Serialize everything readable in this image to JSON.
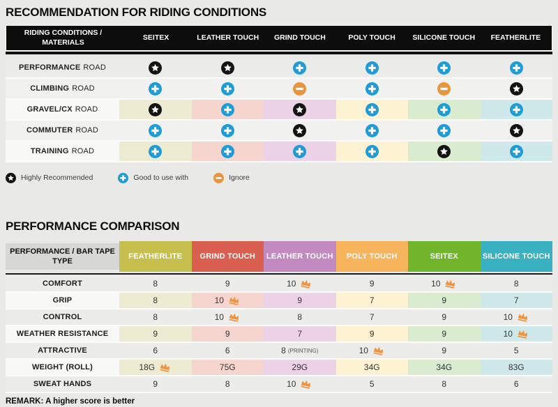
{
  "colors": {
    "icon_star_bg": "#141414",
    "icon_plus_bg": "#1d9cd8",
    "icon_minus_bg": "#e9953c",
    "crown": "#f0923e",
    "column_tints": [
      "#edecd3",
      "#f5d5cd",
      "#ecd2e6",
      "#fdf3d2",
      "#d9ecd0",
      "#cfe8e9"
    ]
  },
  "chart_data": [
    {
      "type": "table",
      "title": "RECOMMENDATION FOR RIDING CONDITIONS",
      "corner_label": "RIDING CONDITIONS / MATERIALS",
      "columns": [
        "SEITEX",
        "LEATHER TOUCH",
        "GRIND TOUCH",
        "POLY TOUCH",
        "SILICONE TOUCH",
        "FEATHERLITE"
      ],
      "rows": [
        {
          "label_bold": "PERFORMANCE",
          "label_rest": "ROAD",
          "tinted": false,
          "cells": [
            "star",
            "star",
            "plus",
            "plus",
            "plus",
            "plus"
          ]
        },
        {
          "label_bold": "CLIMBING",
          "label_rest": "ROAD",
          "tinted": false,
          "cells": [
            "plus",
            "plus",
            "minus",
            "plus",
            "minus",
            "star"
          ]
        },
        {
          "label_bold": "GRAVEL/CX",
          "label_rest": "ROAD",
          "tinted": true,
          "cells": [
            "star",
            "plus",
            "star",
            "plus",
            "plus",
            "plus"
          ]
        },
        {
          "label_bold": "COMMUTER",
          "label_rest": "ROAD",
          "tinted": false,
          "cells": [
            "plus",
            "plus",
            "star",
            "plus",
            "plus",
            "star"
          ]
        },
        {
          "label_bold": "TRAINING",
          "label_rest": "ROAD",
          "tinted": true,
          "cells": [
            "plus",
            "plus",
            "plus",
            "plus",
            "star",
            "plus"
          ]
        }
      ],
      "legend": [
        {
          "icon": "star",
          "label": "Highly Recommended"
        },
        {
          "icon": "plus",
          "label": "Good to use with"
        },
        {
          "icon": "minus",
          "label": "Ignore"
        }
      ]
    },
    {
      "type": "table",
      "title": "PERFORMANCE COMPARISON",
      "corner_label": "PERFORMANCE / BAR TAPE TYPE",
      "columns": [
        {
          "label": "FEATHERLITE",
          "color": "#c6bf4e"
        },
        {
          "label": "GRIND TOUCH",
          "color": "#d95f50"
        },
        {
          "label": "LEATHER TOUCH",
          "color": "#c28ac0"
        },
        {
          "label": "POLY TOUCH",
          "color": "#f6b45d"
        },
        {
          "label": "SEITEX",
          "color": "#70b52c"
        },
        {
          "label": "SILICONE TOUCH",
          "color": "#3ab1c1"
        }
      ],
      "rows": [
        {
          "label": "COMFORT",
          "tinted": false,
          "cells": [
            {
              "value": "8"
            },
            {
              "value": "9"
            },
            {
              "value": "10",
              "crown": true
            },
            {
              "value": "9"
            },
            {
              "value": "10",
              "crown": true
            },
            {
              "value": "8"
            }
          ]
        },
        {
          "label": "GRIP",
          "tinted": true,
          "cells": [
            {
              "value": "8"
            },
            {
              "value": "10",
              "crown": true
            },
            {
              "value": "9"
            },
            {
              "value": "7"
            },
            {
              "value": "9"
            },
            {
              "value": "7"
            }
          ]
        },
        {
          "label": "CONTROL",
          "tinted": false,
          "cells": [
            {
              "value": "8"
            },
            {
              "value": "10",
              "crown": true
            },
            {
              "value": "8"
            },
            {
              "value": "7"
            },
            {
              "value": "9"
            },
            {
              "value": "10",
              "crown": true
            }
          ]
        },
        {
          "label": "WEATHER RESISTANCE",
          "tinted": true,
          "cells": [
            {
              "value": "9"
            },
            {
              "value": "9"
            },
            {
              "value": "7"
            },
            {
              "value": "9"
            },
            {
              "value": "9"
            },
            {
              "value": "10",
              "crown": true
            }
          ]
        },
        {
          "label": "ATTRACTIVE",
          "tinted": false,
          "cells": [
            {
              "value": "6"
            },
            {
              "value": "6"
            },
            {
              "value": "8",
              "suffix": "(PRINTING)"
            },
            {
              "value": "10",
              "crown": true
            },
            {
              "value": "9"
            },
            {
              "value": "5"
            }
          ]
        },
        {
          "label": "WEIGHT (ROLL)",
          "tinted": true,
          "cells": [
            {
              "value": "18G",
              "crown": true
            },
            {
              "value": "75G"
            },
            {
              "value": "29G"
            },
            {
              "value": "34G"
            },
            {
              "value": "34G"
            },
            {
              "value": "83G"
            }
          ]
        },
        {
          "label": "SWEAT HANDS",
          "tinted": false,
          "cells": [
            {
              "value": "9"
            },
            {
              "value": "8"
            },
            {
              "value": "10",
              "crown": true
            },
            {
              "value": "5"
            },
            {
              "value": "8"
            },
            {
              "value": "6"
            }
          ]
        }
      ],
      "remark": "REMARK: A higher score is better"
    }
  ]
}
